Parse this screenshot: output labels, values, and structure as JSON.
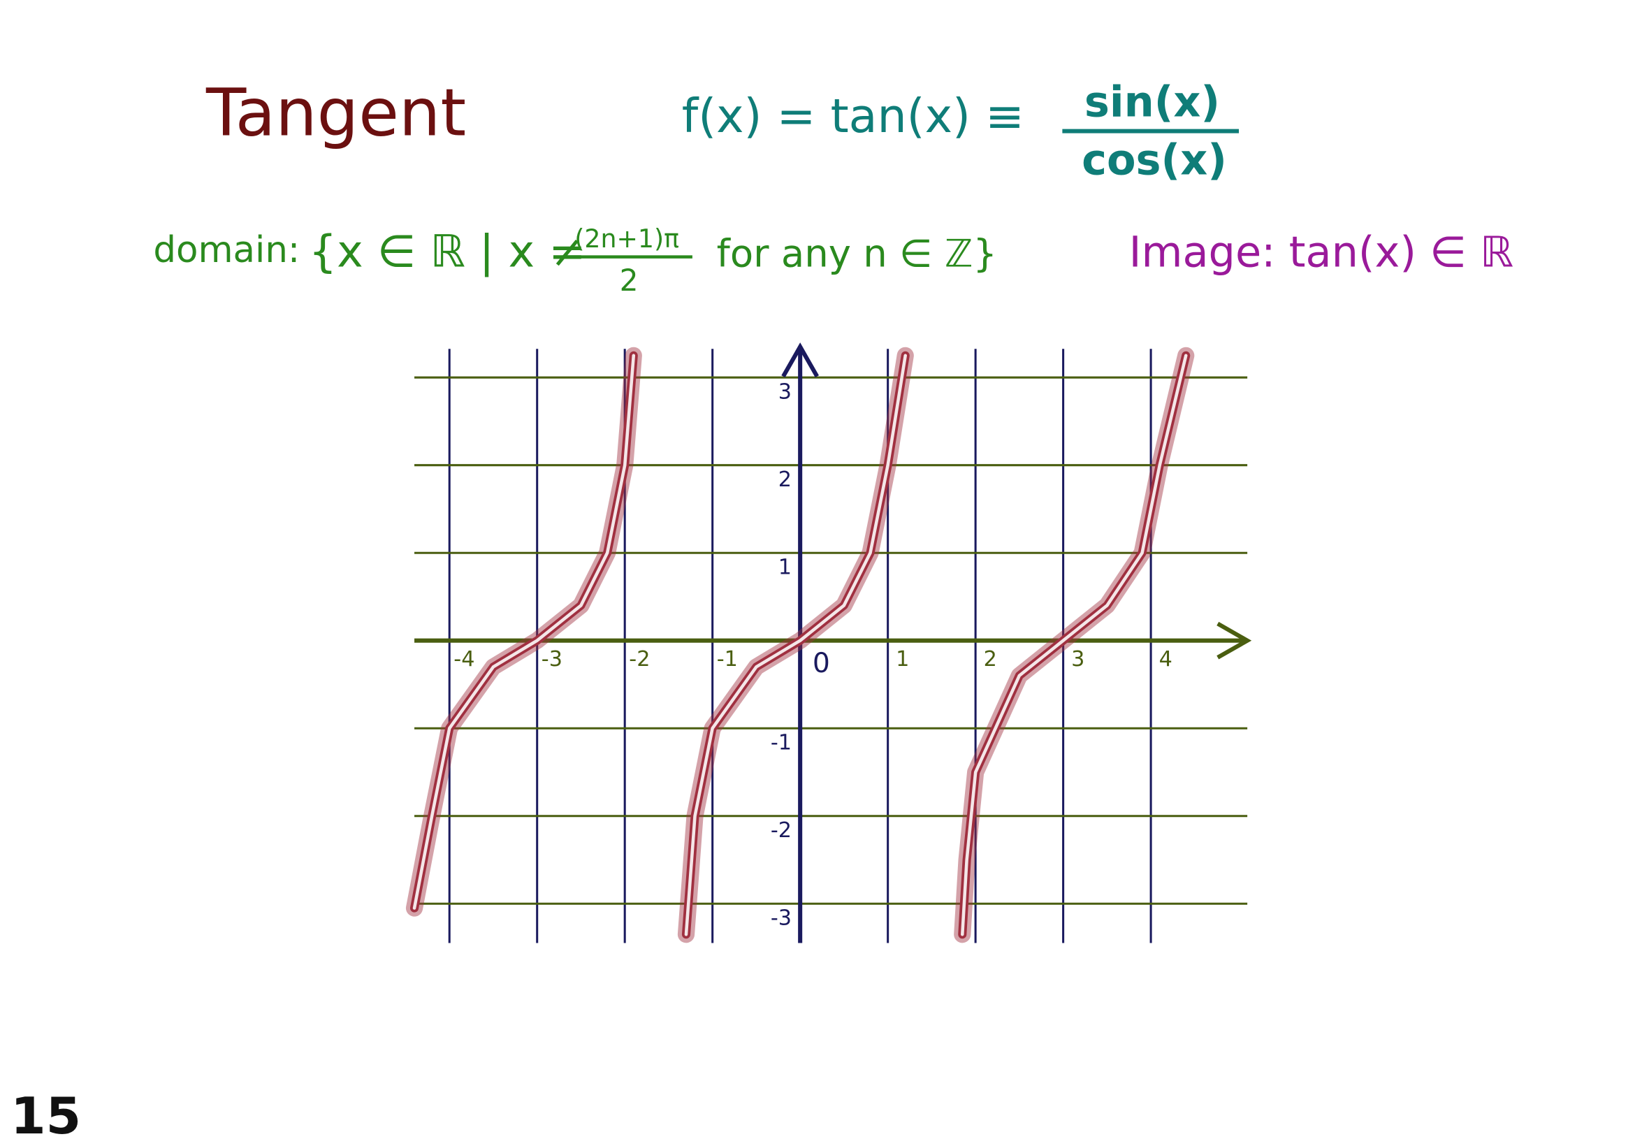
{
  "page": {
    "title": "Tangent",
    "formula": {
      "lhs": "f(x) = tan(x) ≡",
      "numerator": "sin(x)",
      "denominator": "cos(x)"
    },
    "domain": {
      "label": "domain:",
      "set_start": "{x ∈ ℝ | x ≠",
      "numerator": "(2n+1)π",
      "denominator": "2",
      "set_end": "for any n ∈ ℤ}"
    },
    "image": "Image: tan(x) ∈ ℝ",
    "page_number": "15"
  },
  "chart_data": {
    "type": "line",
    "series": [
      {
        "color": "#a03040",
        "x": [
          -4.4,
          -4.2,
          -4,
          -3.5,
          -3,
          -2.5,
          -2.2,
          -2,
          -1.9
        ],
        "values": [
          -3.05,
          -2,
          -1,
          -0.3,
          0,
          0.4,
          1,
          2,
          3.25
        ]
      },
      {
        "color": "#a03040",
        "x": [
          -1.3,
          -1.2,
          -1,
          -0.5,
          0,
          0.5,
          0.8,
          1,
          1.2
        ],
        "values": [
          -3.35,
          -2,
          -1,
          -0.3,
          0,
          0.4,
          1,
          2,
          3.25
        ]
      },
      {
        "color": "#a03040",
        "x": [
          1.85,
          1.9,
          2,
          2.5,
          3,
          3.5,
          3.9,
          4.1,
          4.4
        ],
        "values": [
          -3.35,
          -2.5,
          -1.5,
          -0.4,
          0,
          0.4,
          1,
          2,
          3.25
        ]
      }
    ],
    "xlim": [
      -4.4,
      5.1
    ],
    "ylim": [
      -3.4,
      3.35
    ],
    "xticks": [
      -4,
      -3,
      -2,
      -1,
      0,
      1,
      2,
      3,
      4
    ],
    "yticks": [
      -3,
      -2,
      -1,
      1,
      2,
      3
    ],
    "grid": true
  }
}
